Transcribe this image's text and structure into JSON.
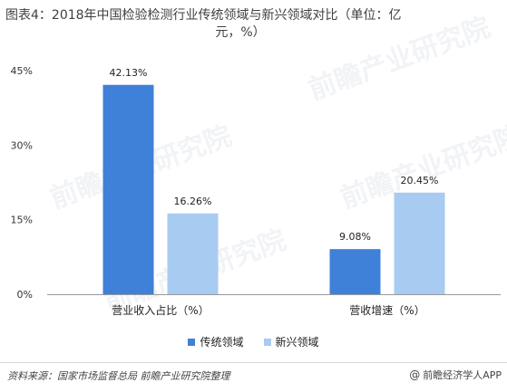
{
  "title_line1": "图表4：2018年中国检验检测行业传统领域与新兴领域对比（单位：亿",
  "title_line2": "元，%）",
  "source": "资料来源：国家市场监督总局 前瞻产业研究院整理",
  "brand": "前瞻经济学人APP",
  "brand_icon": "@",
  "watermark": "前瞻产业研究院",
  "colors": {
    "traditional": "#3f80d8",
    "emerging": "#a8cbf2",
    "axis": "#999999"
  },
  "chart_data": {
    "type": "bar",
    "categories": [
      "营业收入占比（%）",
      "营收增速（%）"
    ],
    "series": [
      {
        "name": "传统领域",
        "values": [
          42.13,
          9.08
        ],
        "labels": [
          "42.13%",
          "9.08%"
        ]
      },
      {
        "name": "新兴领域",
        "values": [
          16.26,
          20.45
        ],
        "labels": [
          "16.26%",
          "20.45%"
        ]
      }
    ],
    "yticks": [
      "0%",
      "15%",
      "30%",
      "45%"
    ],
    "ylim": [
      0,
      45
    ],
    "legend_position": "bottom",
    "grid": false
  }
}
